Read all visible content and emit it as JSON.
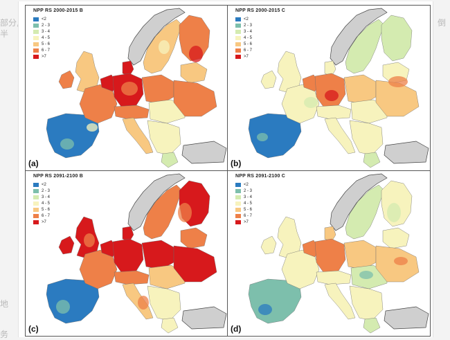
{
  "background_text": {
    "left_1": "部分,",
    "left_2": "半",
    "left_3": "地",
    "left_4": "务",
    "right_1": "倒"
  },
  "legend": {
    "classes": [
      {
        "label": "<2",
        "color": "#2b7bc0"
      },
      {
        "label": "2 - 3",
        "color": "#7dbfac"
      },
      {
        "label": "3 - 4",
        "color": "#d4ebb0"
      },
      {
        "label": "4 - 5",
        "color": "#f7f3bd"
      },
      {
        "label": "5 - 6",
        "color": "#f8c881"
      },
      {
        "label": "6 - 7",
        "color": "#ee8048"
      },
      {
        "label": ">7",
        "color": "#d7191c"
      }
    ]
  },
  "panels": [
    {
      "title": "NPP RS 2000-2015 B",
      "label": "(a)"
    },
    {
      "title": "NPP RS 2000-2015 C",
      "label": "(b)"
    },
    {
      "title": "NPP RS 2091-2100 B",
      "label": "(c)"
    },
    {
      "title": "NPP RS 2091-2100 C",
      "label": "(d)"
    }
  ]
}
